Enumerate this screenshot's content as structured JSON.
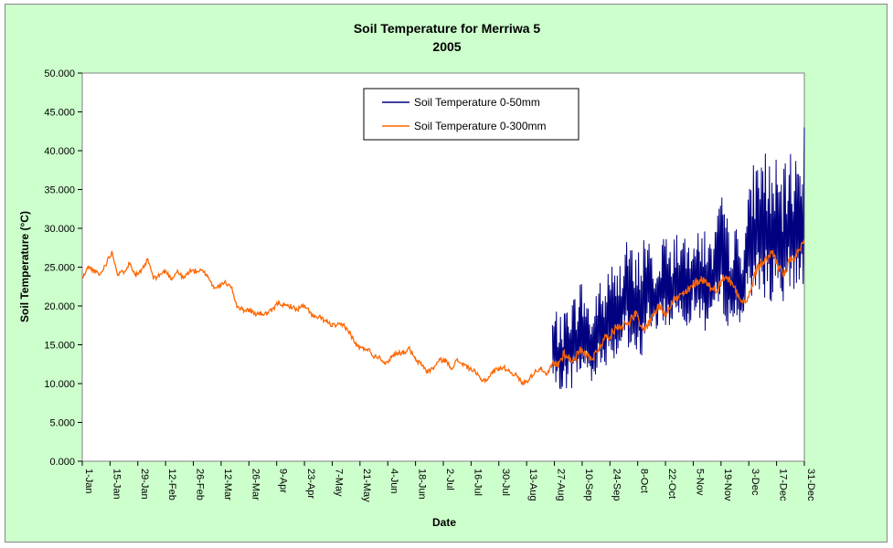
{
  "colors": {
    "chart_bg": "#ccffcc",
    "plot_bg": "#ffffff",
    "series_surface": "#000080",
    "series_deep": "#ff6600"
  },
  "chart_data": {
    "type": "line",
    "title": "Soil Temperature for Merriwa 5",
    "subtitle": "2005",
    "xlabel": "Date",
    "ylabel": "Soil Temperature (°C)",
    "ylim": [
      0,
      50
    ],
    "yticks": [
      "0.000",
      "5.000",
      "10.000",
      "15.000",
      "20.000",
      "25.000",
      "30.000",
      "35.000",
      "40.000",
      "45.000",
      "50.000"
    ],
    "xlim": [
      "2005-01-01",
      "2005-12-31"
    ],
    "xtick_labels": [
      "1-Jan",
      "15-Jan",
      "29-Jan",
      "12-Feb",
      "26-Feb",
      "12-Mar",
      "26-Mar",
      "9-Apr",
      "23-Apr",
      "7-May",
      "21-May",
      "4-Jun",
      "18-Jun",
      "2-Jul",
      "16-Jul",
      "30-Jul",
      "13-Aug",
      "27-Aug",
      "10-Sep",
      "24-Sep",
      "8-Oct",
      "22-Oct",
      "5-Nov",
      "19-Nov",
      "3-Dec",
      "17-Dec",
      "31-Dec"
    ],
    "grid": false,
    "legend_position": "top-center",
    "series": [
      {
        "name": "Soil Temperature 0-50mm",
        "color": "#000080",
        "daily_min_max": [
          {
            "date": "2005-08-26",
            "min": 11.0,
            "max": 19.0
          },
          {
            "date": "2005-08-28",
            "min": 7.5,
            "max": 20.0
          },
          {
            "date": "2005-08-31",
            "min": 9.5,
            "max": 18.0
          },
          {
            "date": "2005-09-03",
            "min": 9.0,
            "max": 22.0
          },
          {
            "date": "2005-09-06",
            "min": 9.5,
            "max": 21.5
          },
          {
            "date": "2005-09-09",
            "min": 10.5,
            "max": 24.0
          },
          {
            "date": "2005-09-12",
            "min": 11.0,
            "max": 22.0
          },
          {
            "date": "2005-09-15",
            "min": 10.0,
            "max": 19.0
          },
          {
            "date": "2005-09-18",
            "min": 11.5,
            "max": 24.0
          },
          {
            "date": "2005-09-21",
            "min": 12.0,
            "max": 22.0
          },
          {
            "date": "2005-09-24",
            "min": 13.0,
            "max": 27.0
          },
          {
            "date": "2005-09-27",
            "min": 13.0,
            "max": 24.0
          },
          {
            "date": "2005-09-30",
            "min": 14.0,
            "max": 27.5
          },
          {
            "date": "2005-10-03",
            "min": 13.5,
            "max": 31.0
          },
          {
            "date": "2005-10-06",
            "min": 12.0,
            "max": 26.0
          },
          {
            "date": "2005-10-09",
            "min": 12.0,
            "max": 28.0
          },
          {
            "date": "2005-10-12",
            "min": 16.0,
            "max": 30.5
          },
          {
            "date": "2005-10-15",
            "min": 17.0,
            "max": 27.0
          },
          {
            "date": "2005-10-18",
            "min": 16.0,
            "max": 25.0
          },
          {
            "date": "2005-10-21",
            "min": 17.5,
            "max": 31.0
          },
          {
            "date": "2005-10-24",
            "min": 17.0,
            "max": 27.0
          },
          {
            "date": "2005-10-27",
            "min": 18.0,
            "max": 30.5
          },
          {
            "date": "2005-10-30",
            "min": 18.5,
            "max": 29.0
          },
          {
            "date": "2005-11-02",
            "min": 17.0,
            "max": 28.5
          },
          {
            "date": "2005-11-05",
            "min": 19.0,
            "max": 31.5
          },
          {
            "date": "2005-11-08",
            "min": 18.0,
            "max": 29.0
          },
          {
            "date": "2005-11-11",
            "min": 16.5,
            "max": 31.5
          },
          {
            "date": "2005-11-14",
            "min": 18.0,
            "max": 28.0
          },
          {
            "date": "2005-11-17",
            "min": 19.0,
            "max": 32.0
          },
          {
            "date": "2005-11-20",
            "min": 19.0,
            "max": 35.0
          },
          {
            "date": "2005-11-23",
            "min": 17.0,
            "max": 30.0
          },
          {
            "date": "2005-11-26",
            "min": 17.0,
            "max": 31.0
          },
          {
            "date": "2005-11-29",
            "min": 17.5,
            "max": 28.0
          },
          {
            "date": "2005-12-02",
            "min": 20.0,
            "max": 33.0
          },
          {
            "date": "2005-12-05",
            "min": 21.0,
            "max": 38.5
          },
          {
            "date": "2005-12-08",
            "min": 22.0,
            "max": 40.0
          },
          {
            "date": "2005-12-11",
            "min": 21.0,
            "max": 41.0
          },
          {
            "date": "2005-12-14",
            "min": 20.0,
            "max": 38.5
          },
          {
            "date": "2005-12-17",
            "min": 19.0,
            "max": 39.0
          },
          {
            "date": "2005-12-20",
            "min": 18.5,
            "max": 37.0
          },
          {
            "date": "2005-12-23",
            "min": 21.0,
            "max": 40.0
          },
          {
            "date": "2005-12-26",
            "min": 22.0,
            "max": 40.0
          },
          {
            "date": "2005-12-29",
            "min": 22.5,
            "max": 41.0
          },
          {
            "date": "2005-12-31",
            "min": 21.5,
            "max": 43.0
          }
        ]
      },
      {
        "name": "Soil Temperature  0-300mm",
        "color": "#ff6600",
        "points": [
          {
            "date": "2005-01-01",
            "y": 23.5
          },
          {
            "date": "2005-01-04",
            "y": 25.0
          },
          {
            "date": "2005-01-07",
            "y": 24.5
          },
          {
            "date": "2005-01-10",
            "y": 24.0
          },
          {
            "date": "2005-01-13",
            "y": 25.5
          },
          {
            "date": "2005-01-16",
            "y": 27.0
          },
          {
            "date": "2005-01-19",
            "y": 24.0
          },
          {
            "date": "2005-01-22",
            "y": 24.5
          },
          {
            "date": "2005-01-25",
            "y": 25.5
          },
          {
            "date": "2005-01-28",
            "y": 24.0
          },
          {
            "date": "2005-01-31",
            "y": 24.5
          },
          {
            "date": "2005-02-03",
            "y": 26.0
          },
          {
            "date": "2005-02-06",
            "y": 23.5
          },
          {
            "date": "2005-02-09",
            "y": 24.0
          },
          {
            "date": "2005-02-12",
            "y": 24.5
          },
          {
            "date": "2005-02-15",
            "y": 23.5
          },
          {
            "date": "2005-02-18",
            "y": 24.5
          },
          {
            "date": "2005-02-21",
            "y": 23.5
          },
          {
            "date": "2005-02-24",
            "y": 24.5
          },
          {
            "date": "2005-02-27",
            "y": 24.5
          },
          {
            "date": "2005-03-02",
            "y": 24.5
          },
          {
            "date": "2005-03-05",
            "y": 24.0
          },
          {
            "date": "2005-03-08",
            "y": 22.5
          },
          {
            "date": "2005-03-11",
            "y": 22.5
          },
          {
            "date": "2005-03-14",
            "y": 23.0
          },
          {
            "date": "2005-03-17",
            "y": 22.5
          },
          {
            "date": "2005-03-20",
            "y": 20.0
          },
          {
            "date": "2005-03-23",
            "y": 19.5
          },
          {
            "date": "2005-03-26",
            "y": 19.5
          },
          {
            "date": "2005-03-29",
            "y": 19.0
          },
          {
            "date": "2005-04-01",
            "y": 19.0
          },
          {
            "date": "2005-04-04",
            "y": 19.0
          },
          {
            "date": "2005-04-07",
            "y": 19.5
          },
          {
            "date": "2005-04-10",
            "y": 20.5
          },
          {
            "date": "2005-04-13",
            "y": 20.0
          },
          {
            "date": "2005-04-16",
            "y": 20.0
          },
          {
            "date": "2005-04-19",
            "y": 19.5
          },
          {
            "date": "2005-04-22",
            "y": 20.0
          },
          {
            "date": "2005-04-25",
            "y": 19.5
          },
          {
            "date": "2005-04-28",
            "y": 18.5
          },
          {
            "date": "2005-05-01",
            "y": 18.5
          },
          {
            "date": "2005-05-04",
            "y": 18.0
          },
          {
            "date": "2005-05-07",
            "y": 17.5
          },
          {
            "date": "2005-05-10",
            "y": 17.5
          },
          {
            "date": "2005-05-13",
            "y": 17.5
          },
          {
            "date": "2005-05-16",
            "y": 16.5
          },
          {
            "date": "2005-05-19",
            "y": 15.0
          },
          {
            "date": "2005-05-22",
            "y": 14.5
          },
          {
            "date": "2005-05-25",
            "y": 14.5
          },
          {
            "date": "2005-05-28",
            "y": 13.5
          },
          {
            "date": "2005-05-31",
            "y": 13.5
          },
          {
            "date": "2005-06-03",
            "y": 12.5
          },
          {
            "date": "2005-06-06",
            "y": 13.5
          },
          {
            "date": "2005-06-09",
            "y": 14.0
          },
          {
            "date": "2005-06-12",
            "y": 14.0
          },
          {
            "date": "2005-06-15",
            "y": 14.5
          },
          {
            "date": "2005-06-18",
            "y": 13.0
          },
          {
            "date": "2005-06-21",
            "y": 12.5
          },
          {
            "date": "2005-06-24",
            "y": 11.5
          },
          {
            "date": "2005-06-27",
            "y": 12.0
          },
          {
            "date": "2005-06-30",
            "y": 13.0
          },
          {
            "date": "2005-07-03",
            "y": 13.0
          },
          {
            "date": "2005-07-06",
            "y": 12.0
          },
          {
            "date": "2005-07-09",
            "y": 13.0
          },
          {
            "date": "2005-07-12",
            "y": 12.5
          },
          {
            "date": "2005-07-15",
            "y": 12.0
          },
          {
            "date": "2005-07-18",
            "y": 11.5
          },
          {
            "date": "2005-07-21",
            "y": 10.5
          },
          {
            "date": "2005-07-24",
            "y": 10.5
          },
          {
            "date": "2005-07-27",
            "y": 11.5
          },
          {
            "date": "2005-07-30",
            "y": 12.0
          },
          {
            "date": "2005-08-02",
            "y": 12.0
          },
          {
            "date": "2005-08-05",
            "y": 11.5
          },
          {
            "date": "2005-08-08",
            "y": 11.0
          },
          {
            "date": "2005-08-11",
            "y": 10.0
          },
          {
            "date": "2005-08-14",
            "y": 10.5
          },
          {
            "date": "2005-08-17",
            "y": 11.5
          },
          {
            "date": "2005-08-20",
            "y": 12.0
          },
          {
            "date": "2005-08-23",
            "y": 11.0
          },
          {
            "date": "2005-08-26",
            "y": 12.5
          },
          {
            "date": "2005-08-29",
            "y": 12.5
          },
          {
            "date": "2005-09-01",
            "y": 14.0
          },
          {
            "date": "2005-09-04",
            "y": 13.0
          },
          {
            "date": "2005-09-07",
            "y": 13.5
          },
          {
            "date": "2005-09-10",
            "y": 14.5
          },
          {
            "date": "2005-09-13",
            "y": 13.5
          },
          {
            "date": "2005-09-16",
            "y": 13.5
          },
          {
            "date": "2005-09-19",
            "y": 15.0
          },
          {
            "date": "2005-09-22",
            "y": 16.0
          },
          {
            "date": "2005-09-25",
            "y": 16.5
          },
          {
            "date": "2005-09-28",
            "y": 17.5
          },
          {
            "date": "2005-10-01",
            "y": 17.5
          },
          {
            "date": "2005-10-04",
            "y": 18.0
          },
          {
            "date": "2005-10-07",
            "y": 19.0
          },
          {
            "date": "2005-10-10",
            "y": 17.0
          },
          {
            "date": "2005-10-13",
            "y": 17.5
          },
          {
            "date": "2005-10-16",
            "y": 19.0
          },
          {
            "date": "2005-10-19",
            "y": 20.0
          },
          {
            "date": "2005-10-22",
            "y": 19.0
          },
          {
            "date": "2005-10-25",
            "y": 20.5
          },
          {
            "date": "2005-10-28",
            "y": 21.0
          },
          {
            "date": "2005-10-31",
            "y": 21.5
          },
          {
            "date": "2005-11-03",
            "y": 22.0
          },
          {
            "date": "2005-11-06",
            "y": 23.0
          },
          {
            "date": "2005-11-09",
            "y": 23.5
          },
          {
            "date": "2005-11-12",
            "y": 23.0
          },
          {
            "date": "2005-11-15",
            "y": 22.0
          },
          {
            "date": "2005-11-18",
            "y": 22.5
          },
          {
            "date": "2005-11-21",
            "y": 24.0
          },
          {
            "date": "2005-11-24",
            "y": 23.0
          },
          {
            "date": "2005-11-27",
            "y": 22.0
          },
          {
            "date": "2005-11-30",
            "y": 20.5
          },
          {
            "date": "2005-12-03",
            "y": 21.0
          },
          {
            "date": "2005-12-06",
            "y": 24.0
          },
          {
            "date": "2005-12-09",
            "y": 25.5
          },
          {
            "date": "2005-12-12",
            "y": 26.0
          },
          {
            "date": "2005-12-15",
            "y": 27.0
          },
          {
            "date": "2005-12-18",
            "y": 25.0
          },
          {
            "date": "2005-12-21",
            "y": 24.0
          },
          {
            "date": "2005-12-24",
            "y": 26.0
          },
          {
            "date": "2005-12-27",
            "y": 26.5
          },
          {
            "date": "2005-12-31",
            "y": 28.0
          }
        ]
      }
    ]
  }
}
